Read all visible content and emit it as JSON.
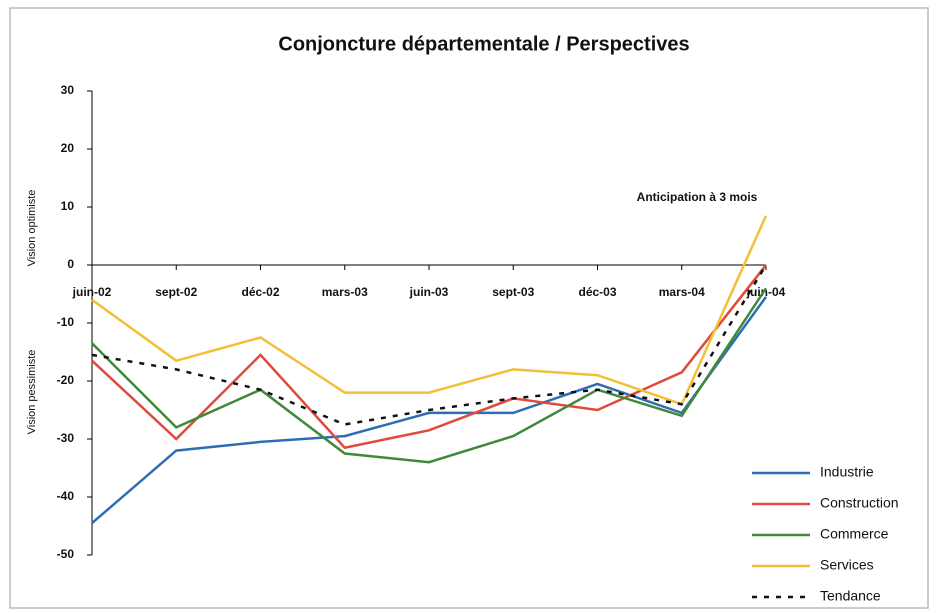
{
  "chart_data": {
    "type": "line",
    "title": "Conjoncture départementale / Perspectives",
    "y_label_top": "Vision optimiste",
    "y_label_bottom": "Vision pessimiste",
    "annotation": "Anticipation à 3 mois",
    "categories": [
      "juin-02",
      "sept-02",
      "déc-02",
      "mars-03",
      "juin-03",
      "sept-03",
      "déc-03",
      "mars-04",
      "juin-04"
    ],
    "ylim": [
      -50,
      30
    ],
    "yticks": [
      -50,
      -40,
      -30,
      -20,
      -10,
      0,
      10,
      20,
      30
    ],
    "series": [
      {
        "name": "Industrie",
        "color": "#2e6db4",
        "dash": false,
        "values": [
          -44.5,
          -32,
          -30.5,
          -29.5,
          -25.5,
          -25.5,
          -20.5,
          -25.5,
          -5.5
        ]
      },
      {
        "name": "Construction",
        "color": "#e04a3a",
        "dash": false,
        "values": [
          -16.5,
          -30,
          -15.5,
          -31.5,
          -28.5,
          -23,
          -25,
          -18.5,
          0
        ]
      },
      {
        "name": "Commerce",
        "color": "#3f8a3a",
        "dash": false,
        "values": [
          -13.5,
          -28,
          -21.5,
          -32.5,
          -34,
          -29.5,
          -21.5,
          -26,
          -4
        ]
      },
      {
        "name": "Services",
        "color": "#f2c037",
        "dash": false,
        "values": [
          -6,
          -16.5,
          -12.5,
          -22,
          -22,
          -18,
          -19,
          -24,
          8.5
        ]
      },
      {
        "name": "Tendance",
        "color": "#111111",
        "dash": true,
        "values": [
          -15.5,
          -18,
          -21.5,
          -27.5,
          -25,
          -23,
          -21.5,
          -24,
          0
        ]
      }
    ]
  }
}
